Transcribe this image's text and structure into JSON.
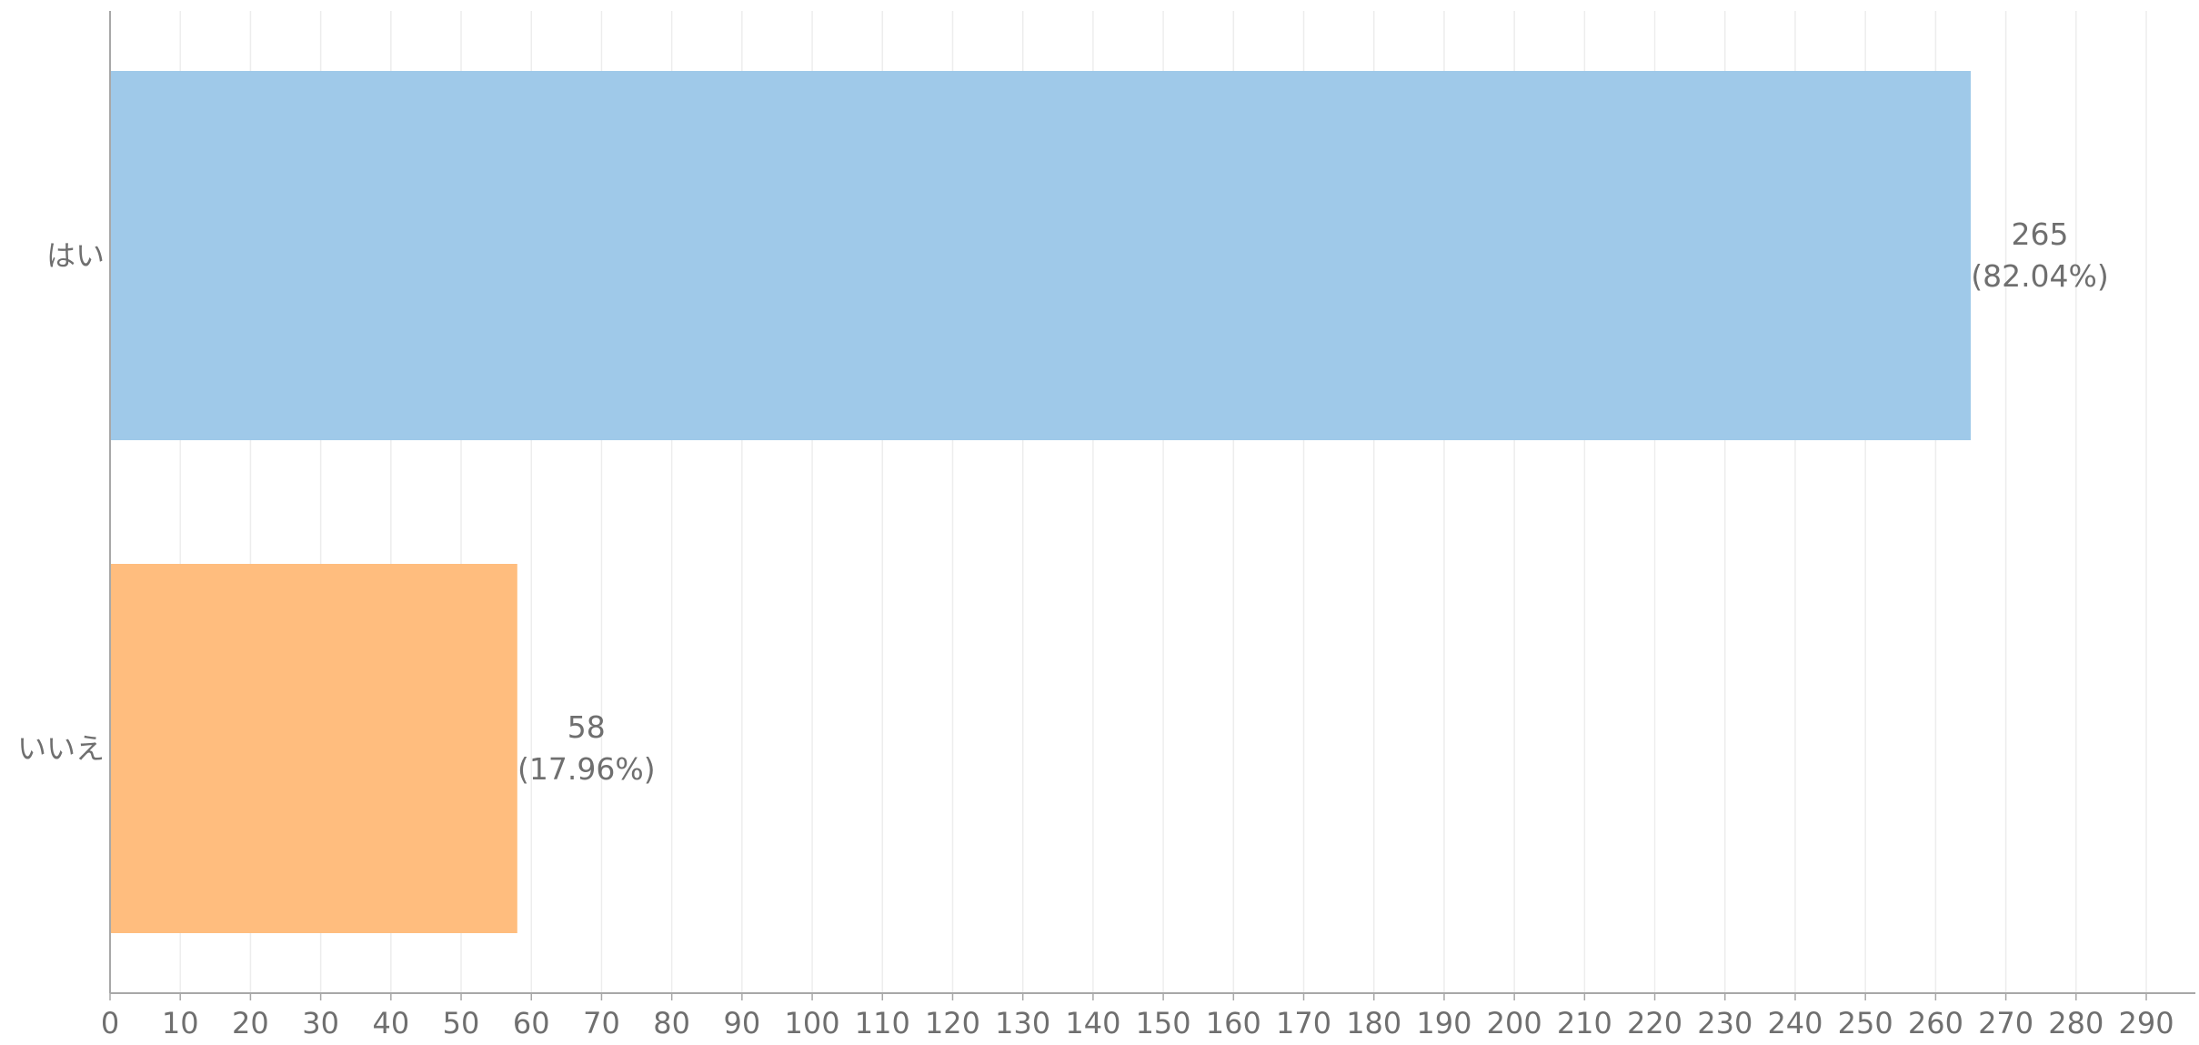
{
  "chart_data": {
    "type": "bar",
    "orientation": "horizontal",
    "categories": [
      "はい",
      "いいえ"
    ],
    "values": [
      265,
      58
    ],
    "percent_labels": [
      "(82.04%)",
      "(17.96%)"
    ],
    "colors": [
      "#9fc9e9",
      "#ffbd7e"
    ],
    "xlim": [
      0,
      297
    ],
    "x_ticks": [
      0,
      10,
      20,
      30,
      40,
      50,
      60,
      70,
      80,
      90,
      100,
      110,
      120,
      130,
      140,
      150,
      160,
      170,
      180,
      190,
      200,
      210,
      220,
      230,
      240,
      250,
      260,
      270,
      280,
      290
    ],
    "grid": true,
    "title": "",
    "xlabel": "",
    "ylabel": ""
  }
}
